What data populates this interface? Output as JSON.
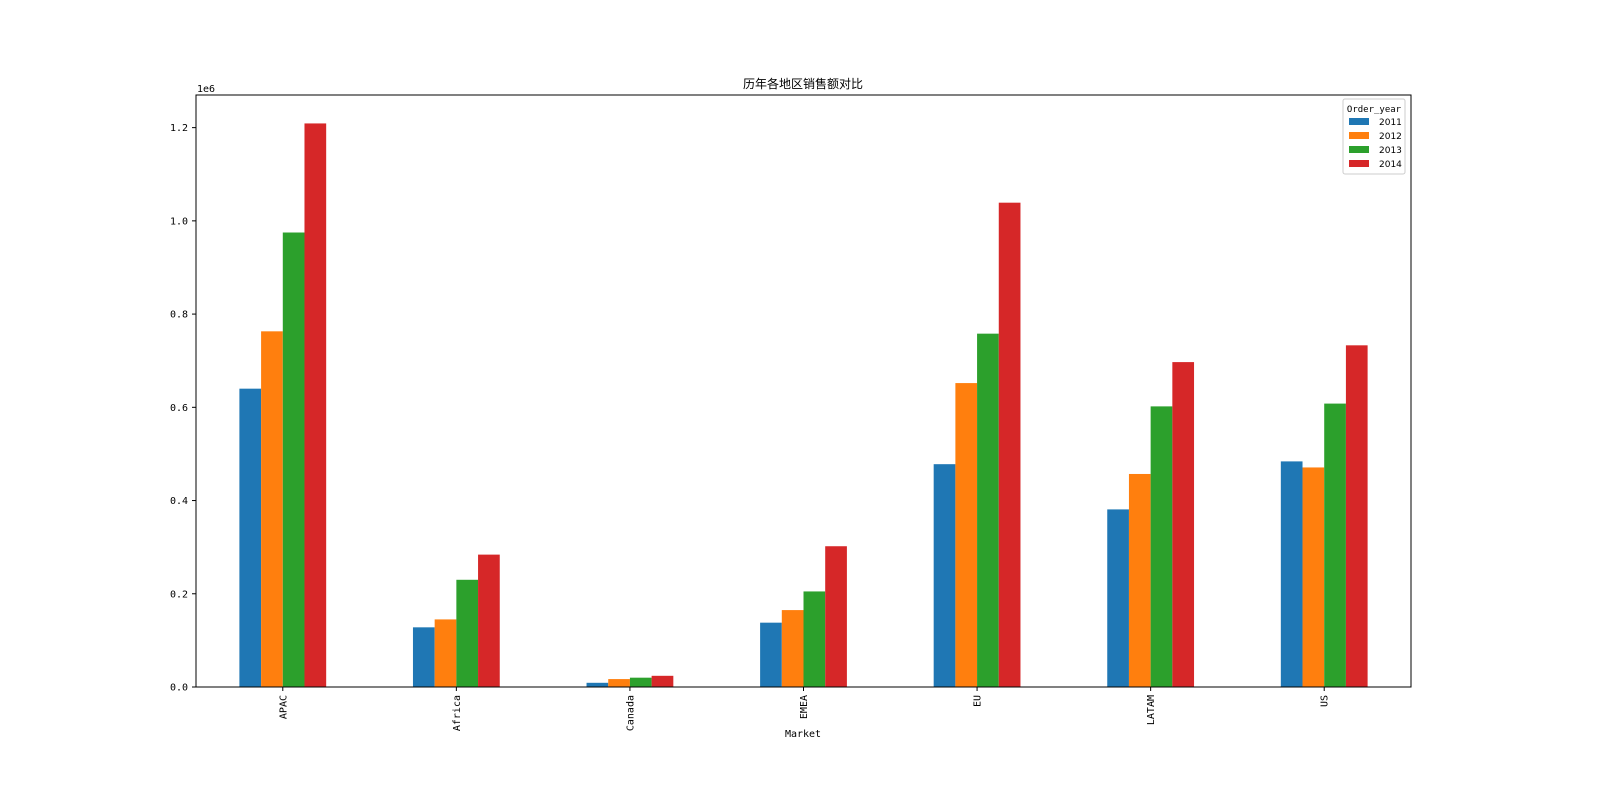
{
  "chart_data": {
    "type": "bar",
    "title": "历年各地区销售额对比",
    "xlabel": "Market",
    "ylabel": "",
    "y_offset_label": "1e6",
    "ylim": [
      0,
      1.27
    ],
    "yticks": [
      0.0,
      0.2,
      0.4,
      0.6,
      0.8,
      1.0,
      1.2
    ],
    "ytick_labels": [
      "0.0",
      "0.2",
      "0.4",
      "0.6",
      "0.8",
      "1.0",
      "1.2"
    ],
    "categories": [
      "APAC",
      "Africa",
      "Canada",
      "EMEA",
      "EU",
      "LATAM",
      "US"
    ],
    "legend_title": "Order_year",
    "legend_position": "top-right",
    "grid": false,
    "series": [
      {
        "name": "2011",
        "color": "#1f77b4",
        "values": [
          0.64,
          0.128,
          0.009,
          0.138,
          0.478,
          0.381,
          0.484
        ]
      },
      {
        "name": "2012",
        "color": "#ff7f0e",
        "values": [
          0.763,
          0.145,
          0.017,
          0.165,
          0.652,
          0.457,
          0.471
        ]
      },
      {
        "name": "2013",
        "color": "#2ca02c",
        "values": [
          0.975,
          0.23,
          0.02,
          0.205,
          0.758,
          0.602,
          0.608
        ]
      },
      {
        "name": "2014",
        "color": "#d62728",
        "values": [
          1.209,
          0.284,
          0.024,
          0.302,
          1.039,
          0.697,
          0.733
        ]
      }
    ]
  }
}
